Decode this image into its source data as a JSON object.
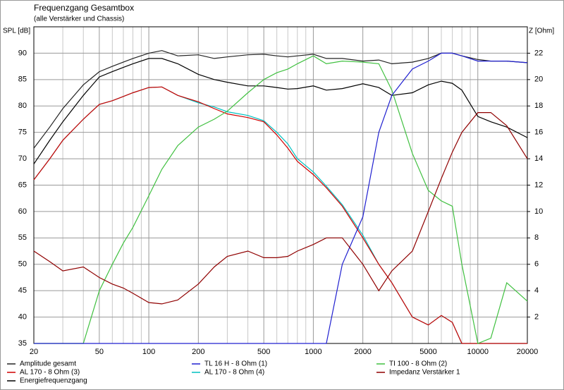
{
  "chart_data": {
    "type": "line",
    "title": "Frequenzgang Gesamtbox",
    "subtitle": "(alle Verstärker und Chassis)",
    "y_label": "SPL [dB]",
    "y2_label": "Z [Ohm]",
    "xscale": "log",
    "grid": true,
    "legend": "bottom",
    "xlim": [
      20,
      20000
    ],
    "xticks": [
      20,
      50,
      100,
      200,
      500,
      1000,
      2000,
      5000,
      10000,
      20000
    ],
    "x_minor_grid": [
      30,
      40,
      60,
      70,
      80,
      90,
      300,
      400,
      600,
      700,
      800,
      900,
      3000,
      4000,
      6000,
      7000,
      8000,
      9000
    ],
    "ylim": [
      35,
      95
    ],
    "yticks": [
      35,
      40,
      45,
      50,
      55,
      60,
      65,
      70,
      75,
      80,
      85,
      90
    ],
    "y2lim": [
      0,
      24
    ],
    "y2ticks": [
      2,
      4,
      6,
      8,
      10,
      12,
      14,
      16,
      18,
      20,
      22
    ],
    "x": [
      20,
      25,
      30,
      40,
      50,
      60,
      70,
      80,
      100,
      120,
      150,
      200,
      250,
      300,
      400,
      500,
      600,
      700,
      800,
      1000,
      1200,
      1500,
      2000,
      2500,
      3000,
      4000,
      5000,
      6000,
      7000,
      8000,
      10000,
      12000,
      15000,
      20000
    ],
    "series": [
      {
        "name": "Energiefrequenzgang",
        "color": "#000000",
        "values": [
          69,
          73.5,
          77,
          82,
          85.5,
          86.5,
          87.3,
          88,
          89,
          89,
          88,
          86,
          85,
          84.5,
          83.8,
          83.8,
          83.5,
          83.2,
          83.3,
          83.8,
          83,
          83.3,
          84.2,
          83.5,
          82,
          82.5,
          84,
          84.7,
          84.3,
          83,
          78,
          77,
          76,
          74
        ]
      },
      {
        "name": "Amplitude gesamt",
        "color": "#222222",
        "values": [
          72,
          76,
          79.5,
          84,
          86.5,
          87.5,
          88.3,
          89,
          90,
          90.5,
          89.5,
          89.7,
          89,
          89.3,
          89.7,
          89.8,
          89.5,
          89.3,
          89.5,
          89.8,
          89,
          89,
          88.5,
          88.7,
          88,
          88.3,
          89,
          90,
          90,
          89.5,
          88.8,
          88.5,
          88.5,
          88.2
        ]
      },
      {
        "name": "AL 170 - 8 Ohm (4)",
        "color": "#00c0c0",
        "values": [
          66,
          70,
          73.5,
          77.5,
          80.3,
          81,
          81.8,
          82.5,
          83.5,
          83.6,
          82,
          80.6,
          79.8,
          78.9,
          78.2,
          77.2,
          75,
          72.8,
          70,
          67.5,
          64.8,
          61.3,
          55.5,
          50,
          46.5,
          40,
          38.5,
          40.3,
          39,
          35,
          35,
          35,
          35,
          35
        ]
      },
      {
        "name": "AL 170 - 8 Ohm (3)",
        "color": "#d00000",
        "values": [
          66,
          70,
          73.5,
          77.5,
          80.3,
          81,
          81.8,
          82.5,
          83.5,
          83.6,
          82,
          80.8,
          79.5,
          78.5,
          77.8,
          77,
          74.5,
          72,
          69.5,
          67,
          64.5,
          61,
          55,
          50,
          46.5,
          40,
          38.5,
          40.3,
          39,
          35,
          35,
          35,
          35,
          35
        ]
      },
      {
        "name": "TI 100 - 8 Ohm (2)",
        "color": "#40c040",
        "values": [
          35,
          35,
          35,
          35,
          45,
          50,
          54,
          57,
          63,
          68,
          72.5,
          76,
          77.5,
          79,
          82.5,
          85,
          86.3,
          87,
          88,
          89.5,
          88,
          88.5,
          88.3,
          88,
          83,
          71,
          64,
          62,
          61,
          50,
          35,
          36,
          46.5,
          43
        ]
      },
      {
        "name": "TL 16 H - 8 Ohm (1)",
        "color": "#2020d0",
        "values": [
          35,
          35,
          35,
          35,
          35,
          35,
          35,
          35,
          35,
          35,
          35,
          35,
          35,
          35,
          35,
          35,
          35,
          35,
          35,
          35,
          35,
          50,
          59,
          75,
          82,
          87,
          88.5,
          90,
          90,
          89.5,
          88.5,
          88.5,
          88.5,
          88.2
        ]
      },
      {
        "name": "Impedanz Verstärker 1",
        "color": "#900000",
        "axis": "y2",
        "values": [
          7,
          6.2,
          5.5,
          5.8,
          5,
          4.5,
          4.2,
          3.8,
          3.1,
          3,
          3.3,
          4.5,
          5.8,
          6.6,
          7,
          6.5,
          6.5,
          6.6,
          7,
          7.5,
          8,
          8,
          6,
          4,
          5.5,
          7,
          10,
          12.5,
          14.5,
          16,
          17.5,
          17.5,
          16.5,
          14
        ]
      }
    ]
  }
}
